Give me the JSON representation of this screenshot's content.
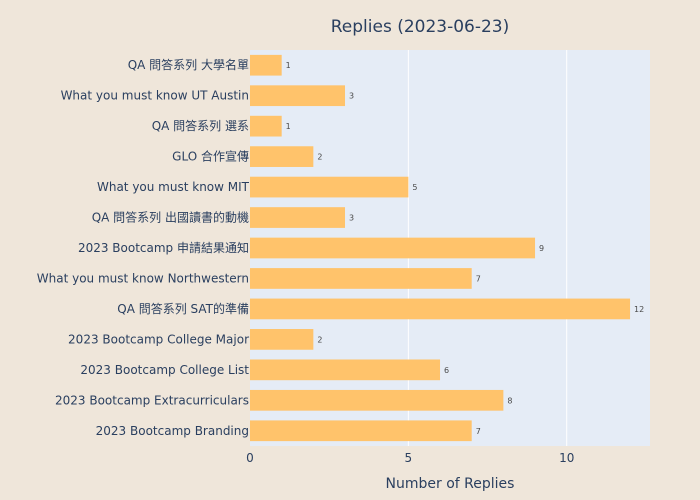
{
  "chart_data": {
    "type": "bar",
    "orientation": "horizontal",
    "title": "Replies (2023-06-23)",
    "xlabel": "Number of Replies",
    "ylabel": "",
    "xlim": [
      0,
      12.63
    ],
    "xticks": [
      0,
      5,
      10
    ],
    "grid": true,
    "bar_color": "#ffc36b",
    "plot_bg": "#e5ecf6",
    "paper_bg": "#efe6da",
    "categories": [
      "QA 問答系列 大學名單",
      "What you must know UT Austin",
      "QA 問答系列 選系",
      "GLO 合作宣傳",
      "What you must know MIT",
      "QA 問答系列 出國讀書的動機",
      "2023 Bootcamp 申請結果通知",
      "What you must know Northwestern",
      "QA 問答系列 SAT的準備",
      "2023 Bootcamp College Major",
      "2023 Bootcamp College List",
      "2023 Bootcamp Extracurriculars",
      "2023 Bootcamp Branding"
    ],
    "values": [
      1,
      3,
      1,
      2,
      5,
      3,
      9,
      7,
      12,
      2,
      6,
      8,
      7
    ]
  }
}
